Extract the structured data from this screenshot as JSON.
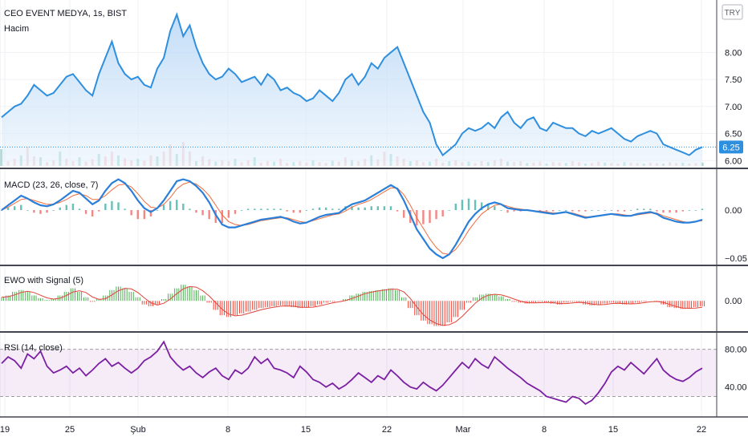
{
  "header": {
    "symbol": "CEO EVENT MEDYA, 1s, BIST",
    "volume_label": "Hacim",
    "currency": "TRY"
  },
  "chart_data": [
    {
      "type": "line",
      "pane": "price",
      "price_series": [
        6.8,
        6.9,
        7.0,
        7.05,
        7.2,
        7.4,
        7.3,
        7.2,
        7.25,
        7.4,
        7.55,
        7.6,
        7.45,
        7.3,
        7.2,
        7.6,
        7.9,
        8.2,
        7.8,
        7.6,
        7.5,
        7.55,
        7.4,
        7.35,
        7.7,
        7.9,
        8.4,
        8.7,
        8.3,
        8.5,
        8.1,
        7.8,
        7.6,
        7.5,
        7.55,
        7.7,
        7.6,
        7.45,
        7.5,
        7.55,
        7.4,
        7.6,
        7.5,
        7.3,
        7.35,
        7.25,
        7.2,
        7.1,
        7.15,
        7.3,
        7.2,
        7.1,
        7.25,
        7.5,
        7.6,
        7.4,
        7.55,
        7.8,
        7.7,
        7.9,
        8.0,
        8.1,
        7.8,
        7.5,
        7.2,
        6.9,
        6.7,
        6.3,
        6.1,
        6.2,
        6.3,
        6.5,
        6.6,
        6.55,
        6.6,
        6.7,
        6.6,
        6.8,
        6.9,
        6.7,
        6.6,
        6.75,
        6.8,
        6.6,
        6.55,
        6.7,
        6.65,
        6.6,
        6.6,
        6.5,
        6.45,
        6.55,
        6.5,
        6.55,
        6.6,
        6.5,
        6.4,
        6.35,
        6.45,
        6.5,
        6.55,
        6.5,
        6.3,
        6.25,
        6.2,
        6.15,
        6.1,
        6.2,
        6.25
      ],
      "ylim": [
        5.9,
        8.85
      ],
      "yticks": [
        "8.00",
        "7.50",
        "7.00",
        "6.50",
        "6.00"
      ],
      "ytick_values": [
        8.0,
        7.5,
        7.0,
        6.5,
        6.0
      ],
      "last_value": "6.25",
      "volume": [
        0.35,
        0.1,
        0.15,
        0.22,
        0.4,
        0.2,
        0.18,
        0.08,
        0.12,
        0.3,
        0.15,
        0.1,
        0.18,
        0.09,
        0.14,
        0.25,
        0.2,
        0.3,
        0.22,
        0.16,
        0.12,
        0.15,
        0.11,
        0.22,
        0.2,
        0.3,
        0.45,
        0.25,
        0.5,
        0.3,
        0.1,
        0.2,
        0.14,
        0.09,
        0.12,
        0.1,
        0.15,
        0.08,
        0.12,
        0.18,
        0.07,
        0.1,
        0.09,
        0.15,
        0.06,
        0.08,
        0.1,
        0.07,
        0.12,
        0.08,
        0.06,
        0.11,
        0.09,
        0.18,
        0.12,
        0.1,
        0.15,
        0.22,
        0.14,
        0.3,
        0.25,
        0.2,
        0.15,
        0.1,
        0.12,
        0.08,
        0.09,
        0.15,
        0.07,
        0.1,
        0.12,
        0.08,
        0.09,
        0.06,
        0.1,
        0.08,
        0.12,
        0.15,
        0.09,
        0.08,
        0.1,
        0.06,
        0.07,
        0.09,
        0.05,
        0.08,
        0.07,
        0.06,
        0.1,
        0.08,
        0.05,
        0.06,
        0.09,
        0.07,
        0.06,
        0.05,
        0.08,
        0.07,
        0.06,
        0.05,
        0.07,
        0.06,
        0.05,
        0.08,
        0.06,
        0.07,
        0.05,
        0.06,
        0.07
      ]
    },
    {
      "type": "line",
      "pane": "macd",
      "label": "MACD (23, 26, close, 7)",
      "yticks": [
        "0.00",
        "−0.05"
      ],
      "ytick_values": [
        0.0,
        -0.05
      ],
      "ylim": [
        -0.055,
        0.04
      ],
      "macd": [
        0.0,
        0.005,
        0.01,
        0.015,
        0.012,
        0.008,
        0.005,
        0.004,
        0.006,
        0.01,
        0.015,
        0.02,
        0.018,
        0.012,
        0.006,
        0.01,
        0.02,
        0.028,
        0.032,
        0.028,
        0.02,
        0.01,
        0.002,
        -0.002,
        0.002,
        0.01,
        0.02,
        0.03,
        0.032,
        0.03,
        0.025,
        0.018,
        0.008,
        -0.005,
        -0.015,
        -0.018,
        -0.018,
        -0.016,
        -0.014,
        -0.012,
        -0.01,
        -0.009,
        -0.008,
        -0.007,
        -0.009,
        -0.012,
        -0.014,
        -0.013,
        -0.01,
        -0.007,
        -0.005,
        -0.004,
        -0.003,
        0.002,
        0.006,
        0.008,
        0.01,
        0.014,
        0.018,
        0.022,
        0.026,
        0.022,
        0.01,
        -0.005,
        -0.02,
        -0.03,
        -0.04,
        -0.046,
        -0.05,
        -0.046,
        -0.036,
        -0.024,
        -0.012,
        -0.004,
        0.002,
        0.006,
        0.008,
        0.006,
        0.002,
        0.001,
        0.0,
        0.0,
        -0.001,
        -0.002,
        -0.003,
        -0.004,
        -0.003,
        -0.002,
        -0.004,
        -0.006,
        -0.008,
        -0.007,
        -0.006,
        -0.005,
        -0.004,
        -0.005,
        -0.006,
        -0.006,
        -0.004,
        -0.003,
        -0.002,
        -0.004,
        -0.008,
        -0.01,
        -0.012,
        -0.013,
        -0.013,
        -0.012,
        -0.01
      ],
      "signal": [
        0.0,
        0.003,
        0.007,
        0.011,
        0.012,
        0.01,
        0.008,
        0.006,
        0.006,
        0.008,
        0.011,
        0.015,
        0.017,
        0.015,
        0.011,
        0.011,
        0.015,
        0.021,
        0.026,
        0.027,
        0.024,
        0.017,
        0.009,
        0.003,
        0.002,
        0.006,
        0.013,
        0.022,
        0.027,
        0.029,
        0.027,
        0.022,
        0.015,
        0.005,
        -0.005,
        -0.012,
        -0.015,
        -0.016,
        -0.015,
        -0.013,
        -0.011,
        -0.01,
        -0.009,
        -0.008,
        -0.008,
        -0.01,
        -0.012,
        -0.013,
        -0.011,
        -0.009,
        -0.007,
        -0.005,
        -0.004,
        -0.001,
        0.003,
        0.006,
        0.008,
        0.011,
        0.015,
        0.019,
        0.023,
        0.023,
        0.016,
        0.005,
        -0.008,
        -0.019,
        -0.03,
        -0.039,
        -0.045,
        -0.046,
        -0.041,
        -0.032,
        -0.021,
        -0.012,
        -0.004,
        0.001,
        0.005,
        0.006,
        0.004,
        0.002,
        0.001,
        0.0,
        -0.001,
        -0.001,
        -0.002,
        -0.003,
        -0.003,
        -0.002,
        -0.003,
        -0.005,
        -0.007,
        -0.007,
        -0.006,
        -0.005,
        -0.004,
        -0.004,
        -0.005,
        -0.006,
        -0.005,
        -0.004,
        -0.003,
        -0.003,
        -0.006,
        -0.008,
        -0.01,
        -0.012,
        -0.013,
        -0.012,
        -0.011
      ]
    },
    {
      "type": "bar",
      "pane": "ewo",
      "label": "EWO with Signal (5)",
      "yticks": [
        "0.00"
      ],
      "ytick_values": [
        0.0
      ],
      "ylim": [
        -1.6,
        1.8
      ],
      "values": [
        0.2,
        0.3,
        0.5,
        0.6,
        0.5,
        0.3,
        0.15,
        0.05,
        0.1,
        0.3,
        0.5,
        0.7,
        0.5,
        0.2,
        -0.05,
        0.1,
        0.3,
        0.6,
        0.8,
        0.7,
        0.5,
        0.2,
        -0.2,
        -0.3,
        -0.2,
        0.1,
        0.4,
        0.7,
        0.9,
        0.8,
        0.6,
        0.3,
        -0.1,
        -0.5,
        -0.8,
        -0.9,
        -0.8,
        -0.7,
        -0.6,
        -0.5,
        -0.4,
        -0.35,
        -0.3,
        -0.25,
        -0.3,
        -0.35,
        -0.4,
        -0.35,
        -0.3,
        -0.2,
        -0.1,
        -0.05,
        0.0,
        0.1,
        0.3,
        0.4,
        0.5,
        0.55,
        0.6,
        0.65,
        0.7,
        0.6,
        0.2,
        -0.4,
        -0.8,
        -1.1,
        -1.3,
        -1.4,
        -1.4,
        -1.2,
        -0.9,
        -0.5,
        -0.1,
        0.2,
        0.35,
        0.4,
        0.35,
        0.25,
        0.1,
        -0.05,
        -0.1,
        -0.15,
        -0.1,
        -0.05,
        -0.1,
        -0.15,
        -0.2,
        -0.1,
        -0.05,
        -0.1,
        -0.2,
        -0.25,
        -0.2,
        -0.15,
        -0.1,
        -0.15,
        -0.2,
        -0.15,
        -0.1,
        -0.05,
        0.0,
        -0.05,
        -0.2,
        -0.35,
        -0.4,
        -0.45,
        -0.4,
        -0.35,
        -0.3
      ]
    },
    {
      "type": "line",
      "pane": "rsi",
      "label": "RSI (14, close)",
      "yticks": [
        "80.00",
        "40.00"
      ],
      "ytick_values": [
        80,
        40
      ],
      "ylim": [
        10,
        95
      ],
      "band": [
        30,
        80
      ],
      "values": [
        65,
        72,
        68,
        60,
        75,
        70,
        78,
        62,
        55,
        58,
        62,
        55,
        60,
        52,
        58,
        65,
        70,
        62,
        66,
        60,
        55,
        60,
        68,
        72,
        78,
        88,
        72,
        64,
        58,
        62,
        55,
        50,
        56,
        60,
        52,
        48,
        58,
        54,
        60,
        72,
        65,
        70,
        60,
        58,
        55,
        50,
        62,
        56,
        48,
        45,
        40,
        44,
        38,
        42,
        48,
        55,
        50,
        45,
        52,
        48,
        58,
        52,
        45,
        40,
        38,
        45,
        40,
        36,
        42,
        50,
        58,
        66,
        60,
        70,
        64,
        60,
        72,
        66,
        60,
        55,
        50,
        44,
        40,
        36,
        30,
        28,
        26,
        24,
        30,
        28,
        22,
        26,
        34,
        44,
        56,
        62,
        58,
        66,
        60,
        54,
        62,
        70,
        58,
        52,
        48,
        46,
        50,
        56,
        60
      ]
    }
  ],
  "x_axis": {
    "labels": [
      "19",
      "25",
      "Şub",
      "8",
      "15",
      "22",
      "Mar",
      "8",
      "15",
      "22"
    ]
  }
}
